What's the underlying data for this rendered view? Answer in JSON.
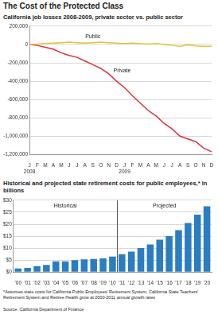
{
  "title": "The Cost of the Protected Class",
  "footnote": "*Assumes state costs for California Public Employees' Retirement System, California State Teachers' Retirement System and Retiree Health grow at 2000-2011 annual growth rates",
  "source": "Source: California Department of Finance",
  "chart_data": [
    {
      "type": "line",
      "title": "California job losses 2008-2009, private sector vs. public sector",
      "categories": [
        [
          "J",
          "2008"
        ],
        "F",
        "M",
        "A",
        "M",
        "J",
        "J",
        "A",
        "S",
        "O",
        "N",
        "D",
        [
          "J",
          "2009"
        ],
        "F",
        "M",
        "A",
        "M",
        "J",
        "J",
        "A",
        "S",
        "O",
        "N",
        "D"
      ],
      "series": [
        {
          "name": "Public",
          "color": "#e8c23a",
          "values": [
            0,
            5000,
            10000,
            15000,
            20000,
            25000,
            20000,
            15000,
            20000,
            25000,
            20000,
            15000,
            10000,
            15000,
            10000,
            5000,
            10000,
            0,
            -10000,
            -20000,
            -5000,
            -15000,
            -20000,
            -20000
          ]
        },
        {
          "name": "Private",
          "color": "#e0303a",
          "values": [
            0,
            -10000,
            -30000,
            -50000,
            -90000,
            -120000,
            -140000,
            -180000,
            -220000,
            -260000,
            -320000,
            -400000,
            -470000,
            -560000,
            -640000,
            -720000,
            -780000,
            -860000,
            -920000,
            -1000000,
            -1030000,
            -1060000,
            -1130000,
            -1170000
          ]
        }
      ],
      "ylim": [
        -1200000,
        200000
      ],
      "yticks": [
        {
          "value": -1200000,
          "label": "-1,200,000"
        },
        {
          "value": -1000000,
          "label": "-1,000,000"
        },
        {
          "value": -800000,
          "label": "-800,000"
        },
        {
          "value": -600000,
          "label": "-600,000"
        },
        {
          "value": -400000,
          "label": "-400,000"
        },
        {
          "value": -200000,
          "label": "-200,000"
        },
        0,
        {
          "value": 200000,
          "label": "200,000"
        }
      ],
      "grid": true
    },
    {
      "type": "bar",
      "title": "Historical and projected state retirement costs for public employees,* in billions",
      "categories": [
        "'00",
        "'01",
        "'02",
        "'03",
        "'04",
        "'05",
        "'06",
        "'07",
        "'08",
        "'09",
        "'10",
        "'11",
        "'12",
        "'13",
        "'14",
        "'15",
        "'16",
        "'17",
        "'18",
        "'19",
        "'20"
      ],
      "values": [
        1.5,
        1.7,
        2.5,
        3,
        4.5,
        4.5,
        5,
        5.3,
        5.5,
        5.7,
        6.5,
        7.5,
        8.5,
        10,
        11.5,
        13.5,
        15,
        17.5,
        20.5,
        24,
        27.5
      ],
      "color": "#2b7dc1",
      "ylim": [
        0,
        30
      ],
      "yticks": [
        {
          "value": 0,
          "label": "$0"
        },
        {
          "value": 5,
          "label": "$5"
        },
        {
          "value": 10,
          "label": "$10"
        },
        {
          "value": 15,
          "label": "$15"
        },
        {
          "value": 20,
          "label": "$20"
        },
        {
          "value": 25,
          "label": "$25"
        },
        {
          "value": 30,
          "label": "$30"
        }
      ],
      "annotations": [
        {
          "text": "Historical",
          "from": "'00",
          "to": "'10"
        },
        {
          "text": "Projected",
          "from": "'11",
          "to": "'20"
        }
      ],
      "grid": true
    }
  ]
}
